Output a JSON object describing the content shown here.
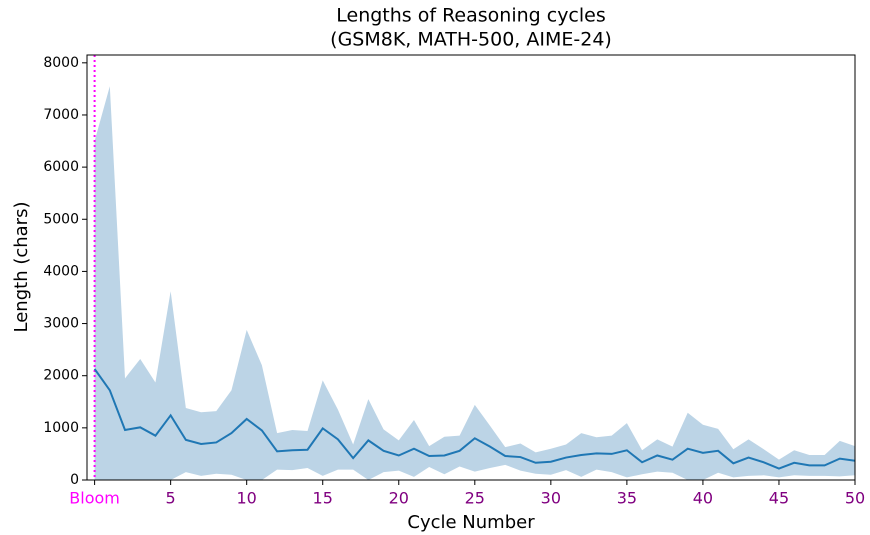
{
  "chart_data": {
    "type": "line",
    "title": [
      "Lengths of Reasoning cycles",
      "(GSM8K, MATH-500, AIME-24)"
    ],
    "xlabel": "Cycle Number",
    "ylabel": "Length (chars)",
    "x": [
      0,
      1,
      2,
      3,
      4,
      5,
      6,
      7,
      8,
      9,
      10,
      11,
      12,
      13,
      14,
      15,
      16,
      17,
      18,
      19,
      20,
      21,
      22,
      23,
      24,
      25,
      26,
      27,
      28,
      29,
      30,
      31,
      32,
      33,
      34,
      35,
      36,
      37,
      38,
      39,
      40,
      41,
      42,
      43,
      44,
      45,
      46,
      47,
      48,
      49,
      50
    ],
    "series": [
      {
        "color": "#1f77b4",
        "values": [
          2130,
          1720,
          960,
          1010,
          850,
          1240,
          770,
          690,
          720,
          900,
          1170,
          950,
          550,
          570,
          580,
          990,
          780,
          420,
          760,
          560,
          470,
          600,
          460,
          470,
          560,
          800,
          640,
          460,
          440,
          330,
          350,
          430,
          480,
          510,
          500,
          570,
          340,
          470,
          390,
          600,
          520,
          560,
          320,
          430,
          340,
          220,
          330,
          280,
          280,
          410,
          370
        ]
      }
    ],
    "band": {
      "color": "#bcd4e6",
      "upper": [
        6500,
        7550,
        1950,
        2320,
        1870,
        3620,
        1380,
        1300,
        1320,
        1720,
        2880,
        2200,
        900,
        960,
        940,
        1910,
        1350,
        680,
        1550,
        970,
        760,
        1150,
        650,
        830,
        850,
        1440,
        1040,
        630,
        700,
        530,
        600,
        680,
        900,
        820,
        850,
        1090,
        570,
        780,
        640,
        1290,
        1060,
        980,
        590,
        780,
        590,
        390,
        570,
        480,
        480,
        750,
        650
      ],
      "lower": [
        0,
        0,
        0,
        0,
        0,
        0,
        150,
        80,
        120,
        100,
        0,
        0,
        200,
        190,
        230,
        80,
        200,
        200,
        0,
        150,
        180,
        60,
        250,
        110,
        260,
        160,
        230,
        290,
        180,
        120,
        100,
        190,
        60,
        200,
        150,
        50,
        110,
        160,
        140,
        0,
        0,
        140,
        50,
        80,
        90,
        50,
        90,
        80,
        80,
        70,
        90
      ]
    },
    "xlim": [
      -0.5,
      50
    ],
    "ylim": [
      0,
      8150
    ],
    "xticks": [
      {
        "value": 0,
        "label": "Bloom"
      },
      5,
      10,
      15,
      20,
      25,
      30,
      35,
      40,
      45,
      50
    ],
    "yticks": [
      0,
      1000,
      2000,
      3000,
      4000,
      5000,
      6000,
      7000,
      8000
    ],
    "xtick_color": "#800080",
    "vline": {
      "x": 0,
      "color": "#ff00ff",
      "style": "dotted"
    }
  }
}
